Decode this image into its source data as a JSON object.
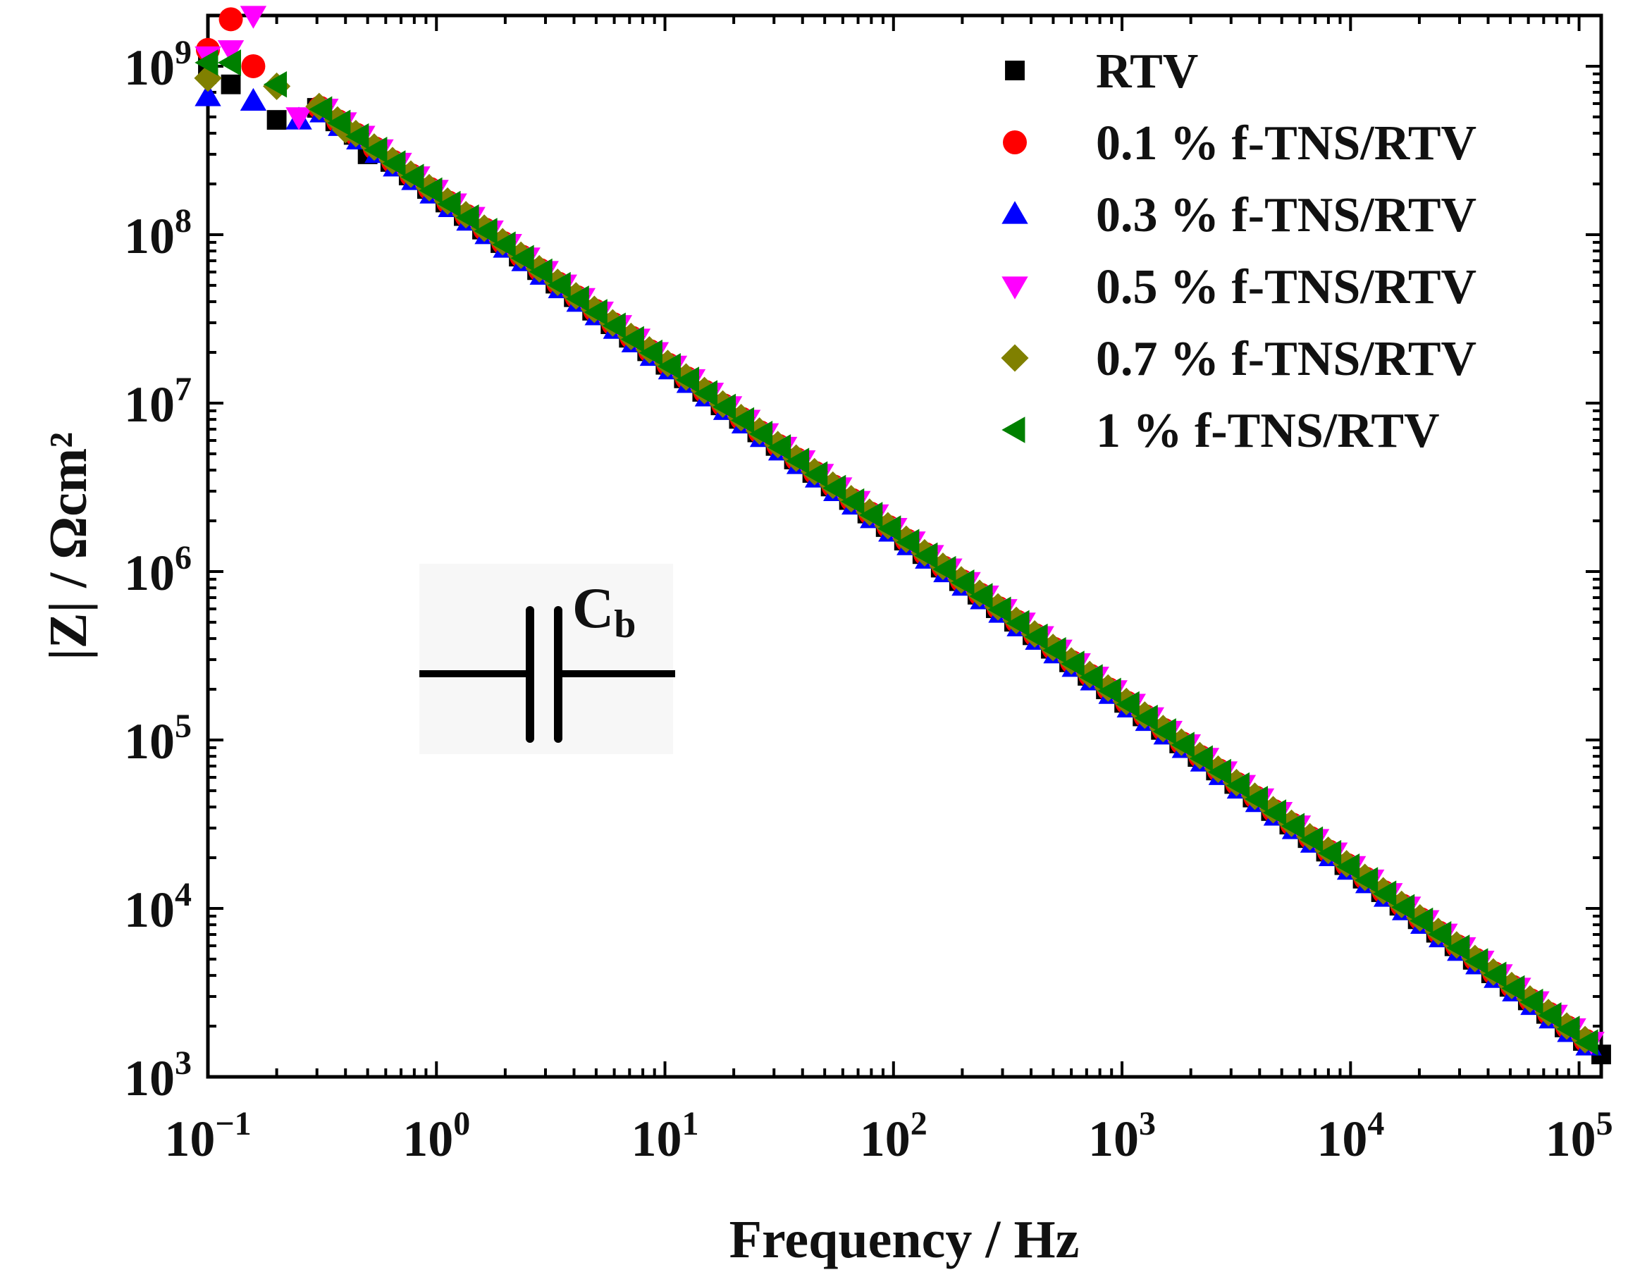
{
  "chart_data": {
    "type": "scatter",
    "xlabel": "Frequency / Hz",
    "ylabel": "|Z| / Ωcm²",
    "xscale": "log",
    "yscale": "log",
    "xlim": [
      0.1,
      125000
    ],
    "ylim": [
      1000,
      2000000000
    ],
    "x_ticks": [
      {
        "base": "10",
        "exp": "−1",
        "value": 0.1
      },
      {
        "base": "10",
        "exp": "0",
        "value": 1
      },
      {
        "base": "10",
        "exp": "1",
        "value": 10
      },
      {
        "base": "10",
        "exp": "2",
        "value": 100
      },
      {
        "base": "10",
        "exp": "3",
        "value": 1000
      },
      {
        "base": "10",
        "exp": "4",
        "value": 10000
      },
      {
        "base": "10",
        "exp": "5",
        "value": 100000
      }
    ],
    "y_ticks": [
      {
        "base": "10",
        "exp": "3",
        "value": 1000
      },
      {
        "base": "10",
        "exp": "4",
        "value": 10000
      },
      {
        "base": "10",
        "exp": "5",
        "value": 100000
      },
      {
        "base": "10",
        "exp": "6",
        "value": 1000000
      },
      {
        "base": "10",
        "exp": "7",
        "value": 10000000
      },
      {
        "base": "10",
        "exp": "8",
        "value": 100000000
      },
      {
        "base": "10",
        "exp": "9",
        "value": 1000000000
      }
    ],
    "legend_position": "top-right",
    "grid": false,
    "trend": {
      "description": "linear on log-log axes, slope -1",
      "value_at_1Hz": 175000000
    },
    "series": [
      {
        "name": "RTV",
        "marker": "square",
        "color": "#000000",
        "low_freq_points": [
          [
            0.1,
            1000000000
          ],
          [
            0.126,
            780000000
          ],
          [
            0.2,
            480000000
          ],
          [
            0.5,
            300000000
          ]
        ],
        "offset": 0.97
      },
      {
        "name": "0.1 % f-TNS/RTV",
        "marker": "circle",
        "color": "#ff0000",
        "low_freq_points": [
          [
            0.1,
            1250000000
          ],
          [
            0.126,
            1900000000
          ],
          [
            0.158,
            1000000000
          ]
        ],
        "offset": 1.0
      },
      {
        "name": "0.3 % f-TNS/RTV",
        "marker": "triangle-up",
        "color": "#0000ff",
        "low_freq_points": [
          [
            0.1,
            660000000
          ],
          [
            0.158,
            620000000
          ],
          [
            0.25,
            480000000
          ]
        ],
        "offset": 0.96
      },
      {
        "name": "0.5 % f-TNS/RTV",
        "marker": "triangle-down",
        "color": "#ff00ff",
        "low_freq_points": [
          [
            0.1,
            1150000000
          ],
          [
            0.126,
            1250000000
          ],
          [
            0.158,
            2000000000
          ],
          [
            0.25,
            500000000
          ]
        ],
        "offset": 1.05
      },
      {
        "name": "0.7 % f-TNS/RTV",
        "marker": "diamond",
        "color": "#808000",
        "low_freq_points": [
          [
            0.1,
            850000000
          ],
          [
            0.2,
            760000000
          ],
          [
            0.4,
            420000000
          ]
        ],
        "offset": 1.01
      },
      {
        "name": "1 % f-TNS/RTV",
        "marker": "triangle-left",
        "color": "#008000",
        "low_freq_points": [
          [
            0.1,
            1050000000
          ],
          [
            0.126,
            1050000000
          ],
          [
            0.2,
            780000000
          ]
        ],
        "offset": 1.0
      }
    ],
    "annotation": {
      "symbol": "capacitor",
      "label_main": "C",
      "label_sub": "b"
    }
  }
}
